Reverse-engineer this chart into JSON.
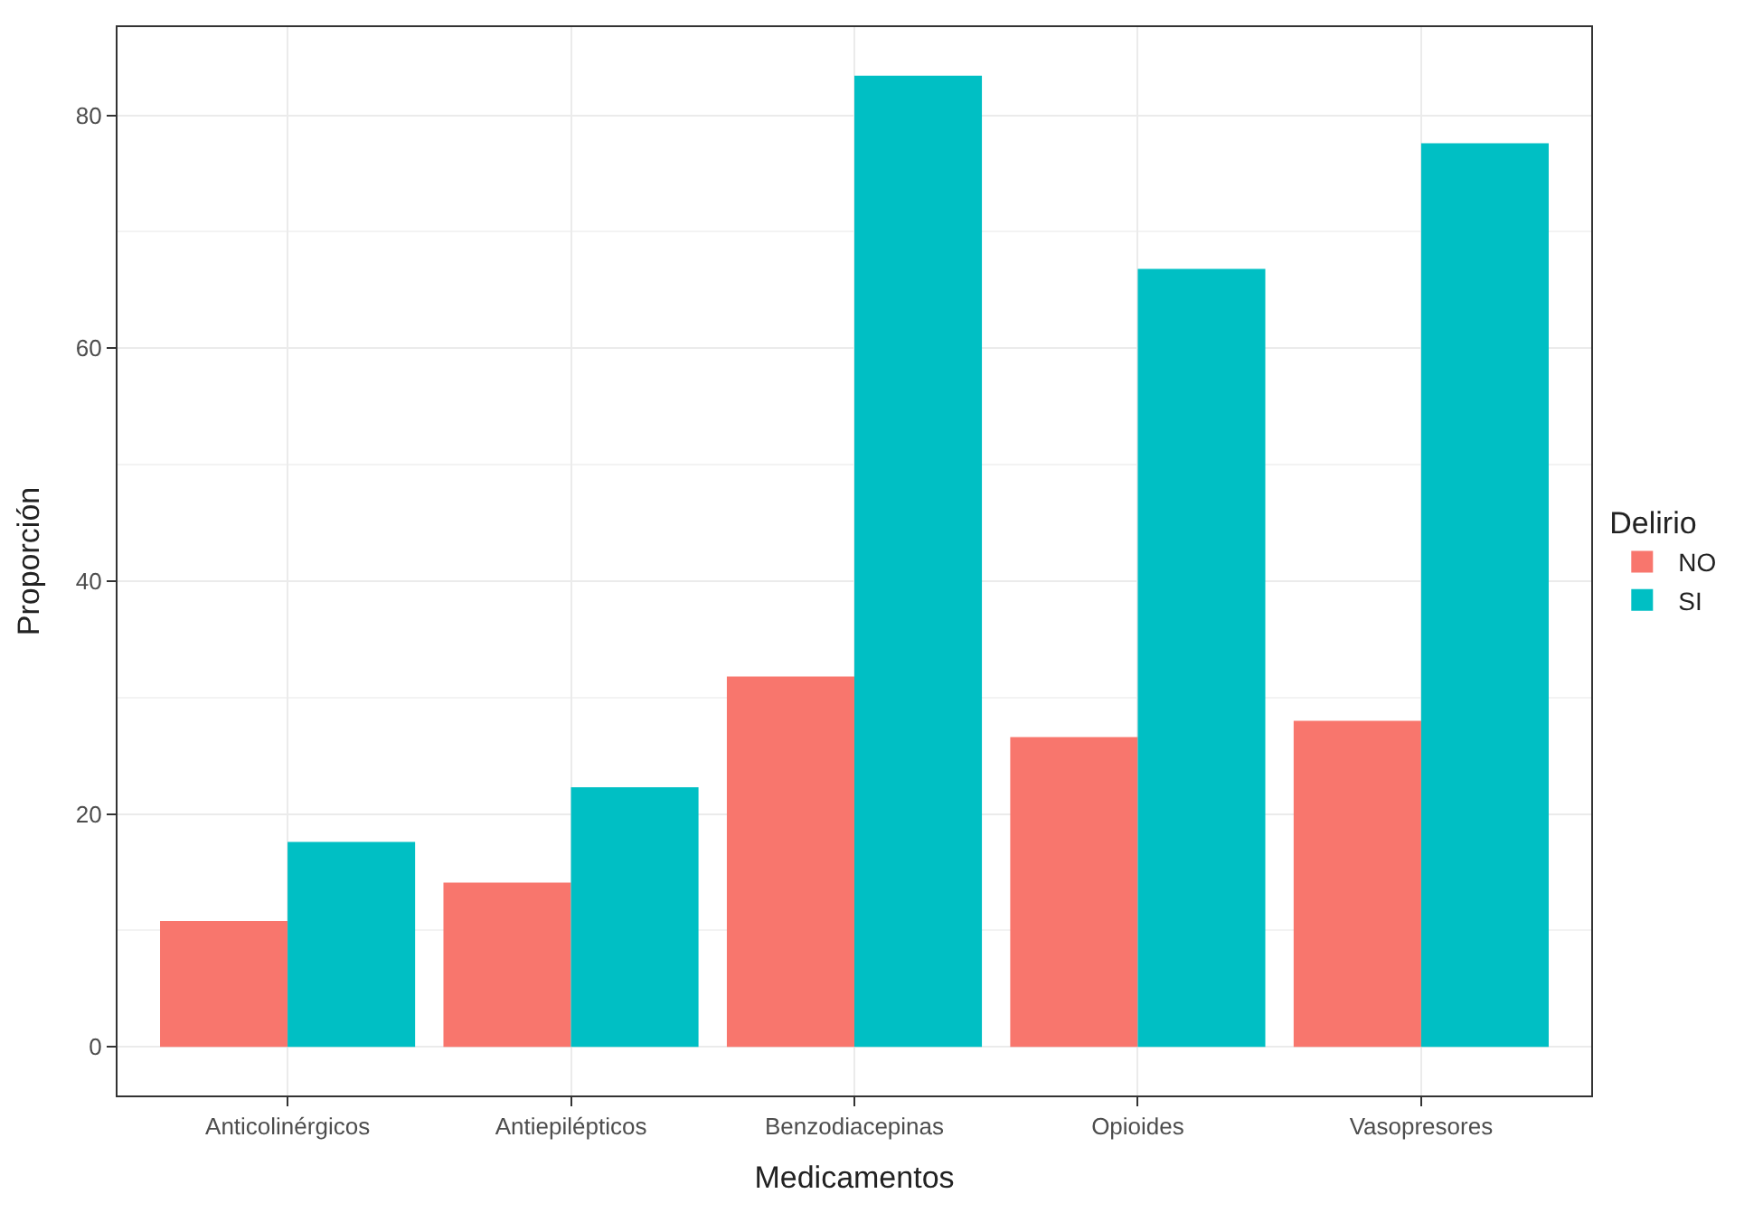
{
  "chart_data": {
    "type": "bar",
    "xlabel": "Medicamentos",
    "ylabel": "Proporción",
    "legend_title": "Delirio",
    "categories": [
      "Anticolinérgicos",
      "Antiepilépticos",
      "Benzodiacepinas",
      "Opioides",
      "Vasopresores"
    ],
    "series": [
      {
        "name": "NO",
        "color": "#f8766d",
        "values": [
          10.8,
          14.1,
          31.8,
          26.6,
          28.0
        ]
      },
      {
        "name": "SI",
        "color": "#00bfc4",
        "values": [
          17.6,
          22.3,
          83.4,
          66.8,
          77.6
        ]
      }
    ],
    "ylim": [
      -4.17,
      87.57
    ],
    "yticks": [
      0,
      20,
      40,
      60,
      80
    ],
    "grid": true,
    "legend": "right"
  }
}
